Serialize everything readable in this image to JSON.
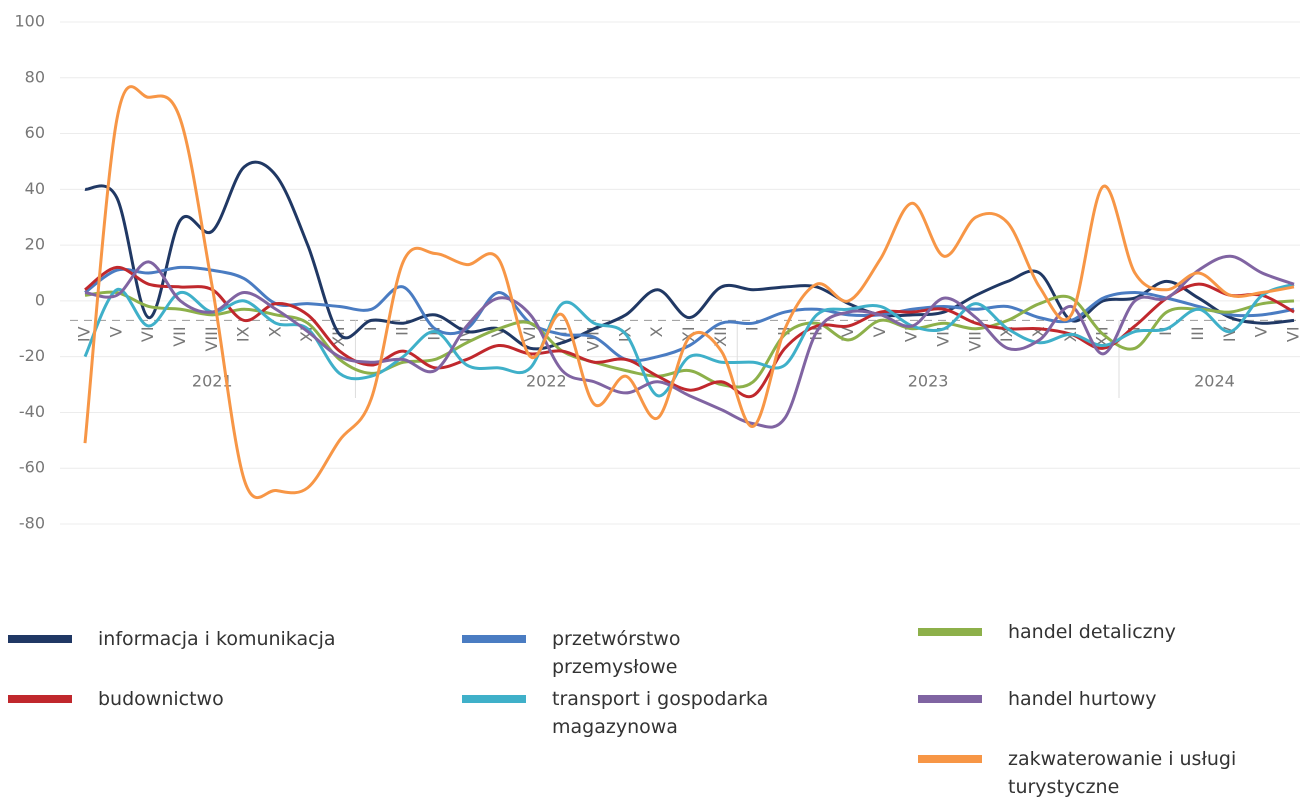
{
  "chart_data": {
    "type": "line",
    "categories": [
      "IV",
      "V",
      "VI",
      "VII",
      "VIII",
      "IX",
      "X",
      "XI",
      "XII",
      "I",
      "II",
      "III",
      "IV",
      "V",
      "VI",
      "VII",
      "VIII",
      "IX",
      "X",
      "XI",
      "XII",
      "I",
      "II",
      "III",
      "IV",
      "V",
      "VI",
      "VII",
      "VIII",
      "IX",
      "X",
      "XI",
      "XII",
      "I",
      "II",
      "III",
      "IV",
      "V",
      "VI"
    ],
    "groups": [
      {
        "label": "2021",
        "size": 9
      },
      {
        "label": "2022",
        "size": 12
      },
      {
        "label": "2023",
        "size": 12
      },
      {
        "label": "2024",
        "size": 6
      }
    ],
    "ylim": [
      -80,
      100
    ],
    "yticks": [
      -80,
      -60,
      -40,
      -20,
      0,
      20,
      40,
      60,
      80,
      100
    ],
    "grid": true,
    "x_axis_at": -7,
    "series": [
      {
        "name": "informacja i komunikacja",
        "color": "#203864",
        "values": [
          40,
          37,
          -6,
          29,
          25,
          48,
          45,
          20,
          -12,
          -7,
          -8,
          -5,
          -11,
          -10,
          -17,
          -15,
          -10,
          -5,
          4,
          -6,
          5,
          4,
          5,
          5,
          -1,
          -5,
          -5,
          -4,
          2,
          7,
          10,
          -7,
          0,
          1,
          7,
          1,
          -6,
          -8,
          -7
        ]
      },
      {
        "name": "przetwórstwo przemysłowe",
        "color": "#4a7cc2",
        "values": [
          3,
          11,
          10,
          12,
          11,
          8,
          -1,
          -1,
          -2,
          -3,
          5,
          -10,
          -10,
          3,
          -8,
          -12,
          -13,
          -21,
          -20,
          -16,
          -8,
          -8,
          -4,
          -3,
          -5,
          -5,
          -3,
          -2,
          -3,
          -2,
          -6,
          -7,
          1,
          3,
          1,
          -2,
          -5,
          -5,
          -3
        ]
      },
      {
        "name": "handel detaliczny",
        "color": "#8db04a",
        "values": [
          2,
          3,
          -2,
          -3,
          -5,
          -3,
          -5,
          -8,
          -21,
          -26,
          -22,
          -21,
          -15,
          -10,
          -8,
          -18,
          -22,
          -25,
          -27,
          -25,
          -30,
          -29,
          -12,
          -8,
          -14,
          -7,
          -10,
          -8,
          -10,
          -7,
          -1,
          1,
          -12,
          -17,
          -4,
          -3,
          -4,
          -1,
          0
        ]
      },
      {
        "name": "budownictwo",
        "color": "#c0282d",
        "values": [
          4,
          12,
          6,
          5,
          4,
          -7,
          -1,
          -5,
          -18,
          -23,
          -18,
          -24,
          -21,
          -16,
          -19,
          -18,
          -22,
          -21,
          -27,
          -32,
          -29,
          -34,
          -17,
          -9,
          -9,
          -4,
          -4,
          -3,
          -8,
          -10,
          -10,
          -12,
          -17,
          -9,
          1,
          6,
          2,
          2,
          -4
        ]
      },
      {
        "name": "transport i gospodarka magazynowa",
        "color": "#3fb0c9",
        "values": [
          -20,
          4,
          -9,
          3,
          -4,
          0,
          -8,
          -10,
          -26,
          -27,
          -20,
          -11,
          -23,
          -24,
          -24,
          -1,
          -8,
          -12,
          -34,
          -20,
          -22,
          -22,
          -23,
          -5,
          -3,
          -2,
          -9,
          -10,
          -1,
          -10,
          -15,
          -12,
          -16,
          -11,
          -10,
          -3,
          -11,
          2,
          6
        ]
      },
      {
        "name": "handel hurtowy",
        "color": "#8064a2",
        "values": [
          3,
          2,
          14,
          0,
          -4,
          3,
          -3,
          -11,
          -20,
          -22,
          -21,
          -25,
          -9,
          1,
          -5,
          -25,
          -29,
          -33,
          -29,
          -34,
          -39,
          -44,
          -42,
          -11,
          -4,
          -5,
          -9,
          1,
          -6,
          -17,
          -14,
          -2,
          -19,
          0,
          1,
          11,
          16,
          10,
          6
        ]
      },
      {
        "name": "zakwaterowanie i usługi turystyczne",
        "color": "#f79646",
        "values": [
          -51,
          65,
          73,
          65,
          5,
          -64,
          -68,
          -67,
          -50,
          -35,
          14,
          17,
          13,
          15,
          -20,
          -5,
          -37,
          -27,
          -42,
          -13,
          -18,
          -45,
          -10,
          6,
          0,
          15,
          35,
          16,
          30,
          28,
          5,
          -5,
          41,
          10,
          4,
          10,
          2,
          3,
          5
        ]
      }
    ]
  }
}
